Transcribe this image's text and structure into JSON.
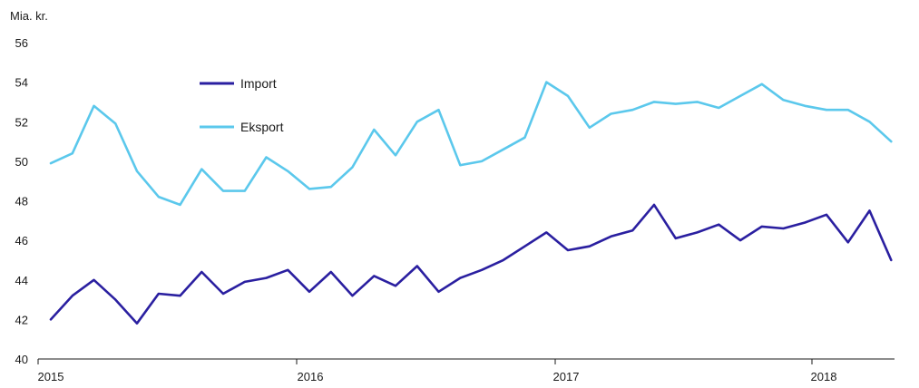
{
  "chart_data": {
    "type": "line",
    "unit_label": "Mia. kr.",
    "ylim": [
      40,
      56
    ],
    "y_ticks": [
      40,
      42,
      44,
      46,
      48,
      50,
      52,
      54,
      56
    ],
    "x_tick_labels": [
      "2015",
      "2016",
      "2017",
      "2018"
    ],
    "grid": false,
    "legend_position": "top-left",
    "x": [
      "2015-01",
      "2015-02",
      "2015-03",
      "2015-04",
      "2015-05",
      "2015-06",
      "2015-07",
      "2015-08",
      "2015-09",
      "2015-10",
      "2015-11",
      "2015-12",
      "2016-01",
      "2016-02",
      "2016-03",
      "2016-04",
      "2016-05",
      "2016-06",
      "2016-07",
      "2016-08",
      "2016-09",
      "2016-10",
      "2016-11",
      "2016-12",
      "2017-01",
      "2017-02",
      "2017-03",
      "2017-04",
      "2017-05",
      "2017-06",
      "2017-07",
      "2017-08",
      "2017-09",
      "2017-10",
      "2017-11",
      "2017-12",
      "2018-01",
      "2018-02",
      "2018-03",
      "2018-04"
    ],
    "series": [
      {
        "name": "Import",
        "color": "#2a1fa0",
        "values": [
          42.0,
          43.2,
          44.0,
          43.0,
          41.8,
          43.3,
          43.2,
          44.4,
          43.3,
          43.9,
          44.1,
          44.5,
          43.4,
          44.4,
          43.2,
          44.2,
          43.7,
          44.7,
          43.4,
          44.1,
          44.5,
          45.0,
          45.7,
          46.4,
          45.5,
          45.7,
          46.2,
          46.5,
          47.8,
          46.1,
          46.4,
          46.8,
          46.0,
          46.7,
          46.6,
          46.9,
          47.3,
          45.9,
          47.5,
          45.0
        ]
      },
      {
        "name": "Eksport",
        "color": "#5bc8ec",
        "values": [
          49.9,
          50.4,
          52.8,
          51.9,
          49.5,
          48.2,
          47.8,
          49.6,
          48.5,
          48.5,
          50.2,
          49.5,
          48.6,
          48.7,
          49.7,
          51.6,
          50.3,
          52.0,
          52.6,
          49.8,
          50.0,
          50.6,
          51.2,
          54.0,
          53.3,
          51.7,
          52.4,
          52.6,
          53.0,
          52.9,
          53.0,
          52.7,
          53.3,
          53.9,
          53.1,
          52.8,
          52.6,
          52.6,
          52.0,
          51.0
        ]
      }
    ]
  }
}
